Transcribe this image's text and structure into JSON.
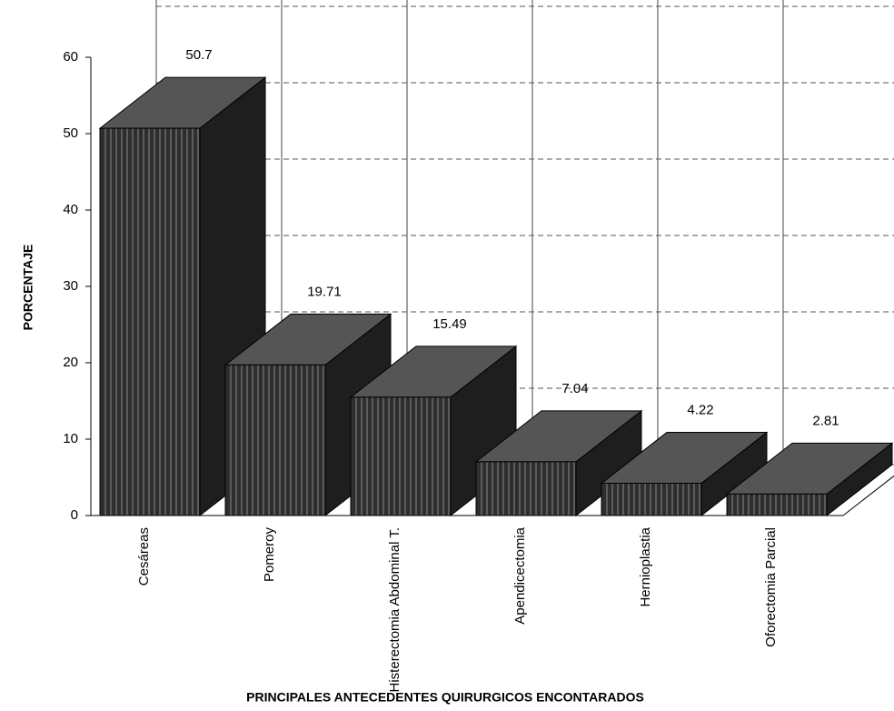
{
  "chart_data": {
    "type": "bar3d",
    "x_label": "PRINCIPALES ANTECEDENTES QUIRURGICOS ENCONTARADOS",
    "y_label": "PORCENTAJE",
    "categories": [
      "Cesáreas",
      "Pomeroy",
      "Histerectomia Abdominal T.",
      "Apendicectomia",
      "Hernioplastia",
      "Oforectomia Parcial"
    ],
    "values": [
      50.7,
      19.71,
      15.49,
      7.04,
      4.22,
      2.81
    ],
    "color": "#3a3a3a",
    "ylim": [
      0,
      60
    ],
    "yticks": [
      0,
      10,
      20,
      30,
      40,
      50,
      60
    ],
    "grid": true
  }
}
